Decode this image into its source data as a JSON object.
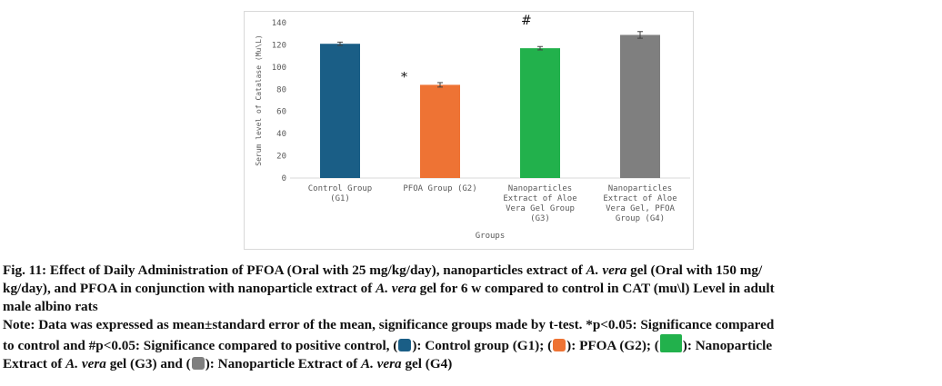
{
  "chart_data": {
    "type": "bar",
    "categories": [
      [
        "Control Group",
        "(G1)"
      ],
      [
        "PFOA Group (G2)"
      ],
      [
        "Nanoparticles",
        "Extract of Aloe",
        "Vera Gel Group",
        "(G3)"
      ],
      [
        "Nanoparticles",
        "Extract of Aloe",
        "Vera Gel, PFOA",
        "Group (G4)"
      ]
    ],
    "values": [
      121,
      84,
      117,
      129
    ],
    "errors": [
      1.5,
      2,
      1.5,
      3
    ],
    "colors": [
      "#1a5e86",
      "#ee7334",
      "#22b14c",
      "#7f7f7f"
    ],
    "ylim": [
      0,
      140
    ],
    "yticks": [
      0,
      20,
      40,
      60,
      80,
      100,
      120,
      140
    ],
    "xlabel": "Groups",
    "ylabel": "Serum level of Catalase (Mu\\L)",
    "annotations": [
      {
        "text": "*",
        "category_index": 1
      },
      {
        "text": "#",
        "category_index": 2
      }
    ],
    "grid": false
  },
  "caption": {
    "line1_a": "Fig. 11: Effect of Daily Administration of PFOA (Oral with 25 mg/kg/day), nanoparticles extract of ",
    "line1_i": "A. vera",
    "line1_b": " gel (Oral with 150 mg/",
    "line2_a": "kg/day), and PFOA in conjunction with nanoparticle extract of ",
    "line2_i": "A. vera",
    "line2_b": " gel for 6 w compared to control in CAT (mu\\l) Level in adult",
    "line3": "male albino rats",
    "note_line1": "Note: Data was expressed as mean±standard error of the mean, significance groups made by t-test. *p<0.05: Significance compared",
    "note_line2_a": "to control and #p<0.05: Significance compared to positive control, (",
    "note_line2_b": "): Control group (G1); (",
    "note_line2_c": "): PFOA (G2); (",
    "note_line2_d": "): Nanoparticle",
    "note_line3_a": "Extract of ",
    "note_line3_i": "A. vera",
    "note_line3_b": " gel (G3) and (",
    "note_line3_c": "): Nanoparticle Extract of ",
    "note_line3_i2": "A. vera",
    "note_line3_d": " gel (G4)"
  }
}
